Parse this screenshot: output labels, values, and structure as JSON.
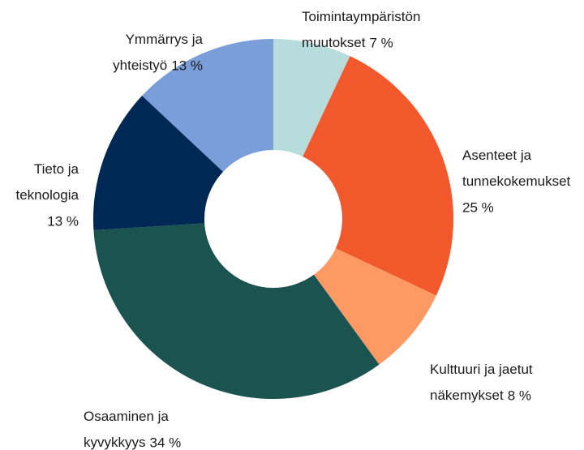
{
  "chart_data": {
    "type": "donut",
    "categories": [
      "Toimintaympäristön muutokset",
      "Asenteet ja tunnekokemukset",
      "Kulttuuri ja jaetut näkemykset",
      "Osaaminen ja kyvykkyys",
      "Tieto ja teknologia",
      "Ymmärrys ja yhteistyö"
    ],
    "values": [
      7,
      25,
      8,
      34,
      13,
      13
    ],
    "value_labels": [
      "7 %",
      "25 %",
      "8 %",
      "34 %",
      "13 %",
      "13 %"
    ],
    "colors": [
      "#b8dcdc",
      "#f1582c",
      "#fd9a63",
      "#1b5350",
      "#002855",
      "#7a9ed9"
    ]
  }
}
